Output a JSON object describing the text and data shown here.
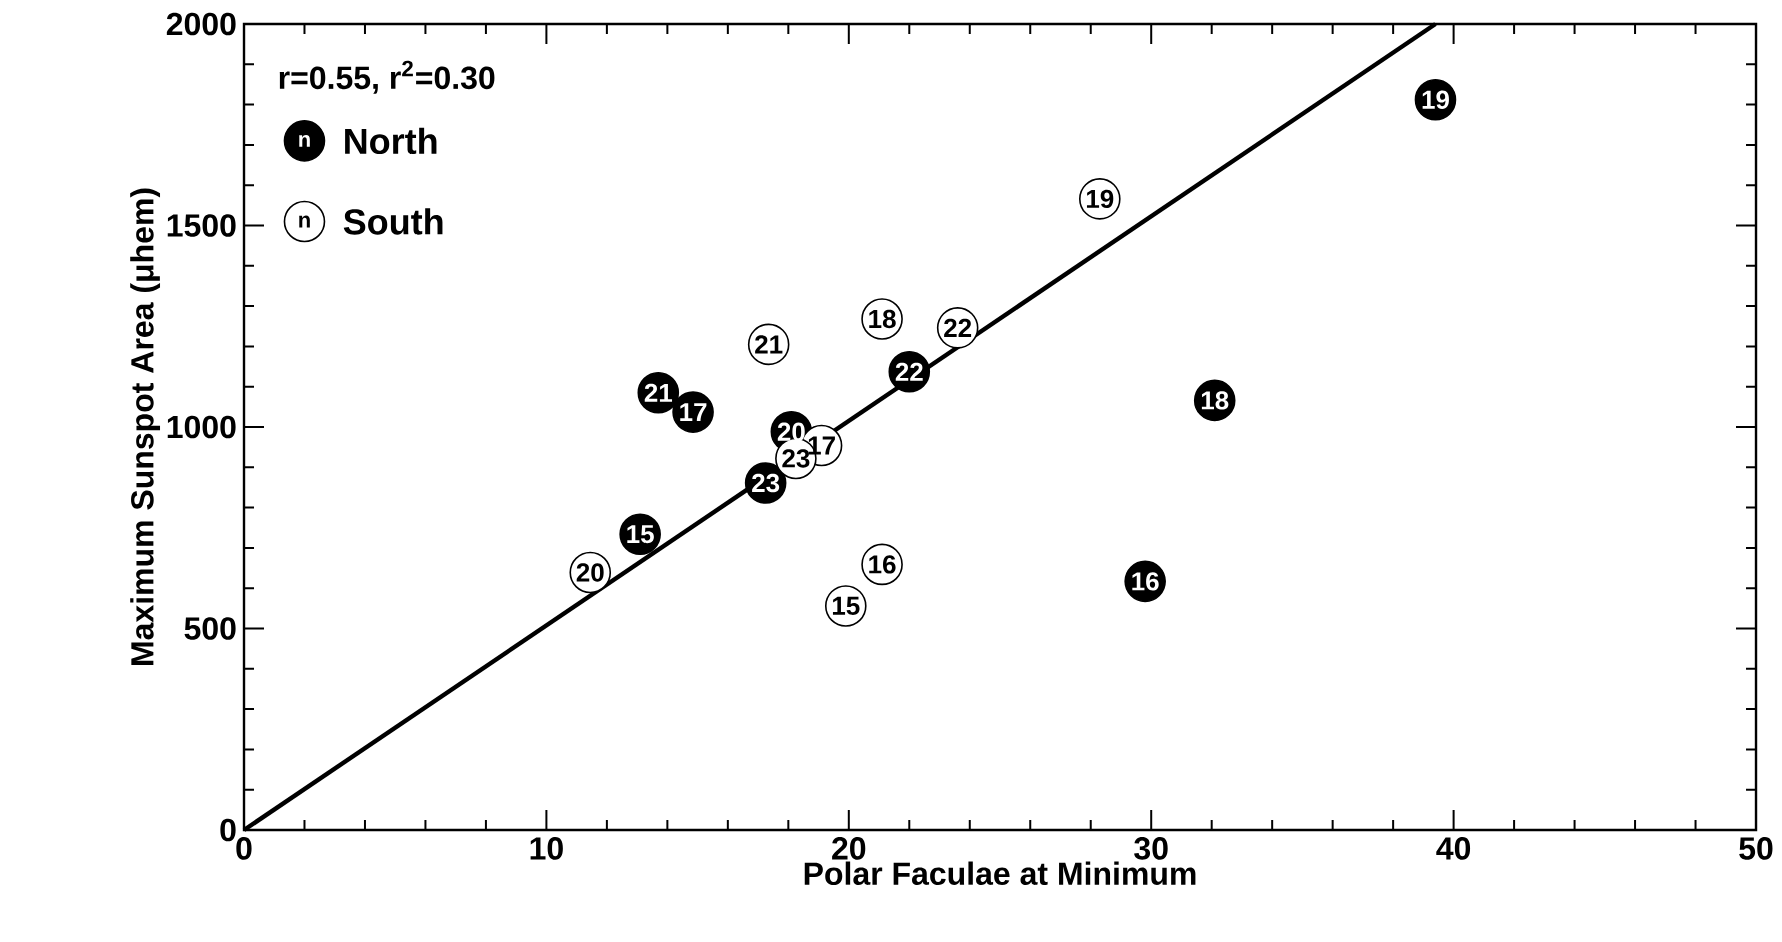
{
  "chart_data": {
    "type": "scatter",
    "xlabel": "Polar Faculae at Minimum",
    "ylabel": "Maximum Sunspot Area (μhem)",
    "xlim": [
      0,
      50
    ],
    "ylim": [
      0,
      2000
    ],
    "xticks": [
      0,
      10,
      20,
      30,
      40,
      50
    ],
    "yticks": [
      0,
      500,
      1000,
      1500,
      2000
    ],
    "grid": false,
    "legend": "top left",
    "marker": "circle",
    "annotations": [
      "r=0.55, r$^{2}$=0.30",
      "n",
      "n",
      {
        "text": "19",
        "x": 39.4,
        "y": 1812
      },
      {
        "text": "18",
        "x": 32.1,
        "y": 1066
      },
      {
        "text": "16",
        "x": 29.8,
        "y": 617
      },
      {
        "text": "22",
        "x": 22.0,
        "y": 1137
      },
      {
        "text": "20",
        "x": 18.1,
        "y": 988
      },
      {
        "text": "23",
        "x": 17.25,
        "y": 861
      },
      {
        "text": "21",
        "x": 13.7,
        "y": 1085
      },
      {
        "text": "17",
        "x": 14.85,
        "y": 1037
      },
      {
        "text": "15",
        "x": 13.1,
        "y": 734
      },
      {
        "text": "19",
        "x": 28.3,
        "y": 1566
      },
      {
        "text": "18",
        "x": 21.1,
        "y": 1268
      },
      {
        "text": "22",
        "x": 23.6,
        "y": 1246
      },
      {
        "text": "21",
        "x": 17.35,
        "y": 1205
      },
      {
        "text": "16",
        "x": 21.1,
        "y": 659
      },
      {
        "text": "15",
        "x": 19.9,
        "y": 556
      },
      {
        "text": "20",
        "x": 11.45,
        "y": 639
      },
      {
        "text": "17",
        "x": 19.1,
        "y": 954
      },
      {
        "text": "23",
        "x": 18.25,
        "y": 922
      }
    ],
    "series": [
      {
        "name": "North",
        "color": "#000000",
        "x": [
          39.4,
          32.1,
          29.8,
          22.0,
          18.1,
          17.25,
          13.7,
          14.85,
          13.1
        ],
        "values": [
          1812,
          1066,
          617,
          1137,
          988,
          861,
          1085,
          1037,
          734
        ]
      },
      {
        "name": "South",
        "color": "#ffffff",
        "x": [
          28.3,
          21.1,
          23.6,
          17.35,
          21.1,
          19.9,
          11.45,
          19.1,
          18.25
        ],
        "values": [
          1566,
          1268,
          1246,
          1205,
          659,
          556,
          639,
          954,
          922
        ]
      },
      {
        "type": "line",
        "color": "#000000",
        "marker": "none",
        "x": [
          0,
          39.4
        ],
        "values": [
          0,
          2000
        ]
      }
    ]
  }
}
